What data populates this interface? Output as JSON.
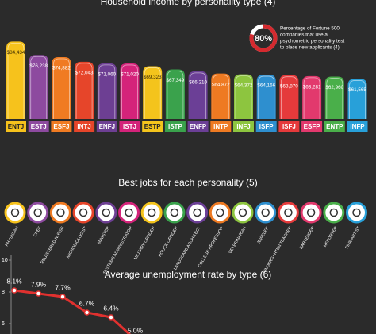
{
  "chart_data": [
    {
      "type": "bar",
      "title": "Household income by personality type (4)",
      "categories": [
        "ENTJ",
        "ESTJ",
        "ESFJ",
        "INTJ",
        "ENFJ",
        "ISTJ",
        "ESTP",
        "ISTP",
        "ENFP",
        "INTP",
        "INFJ",
        "ISFP",
        "ISFJ",
        "ESFP",
        "ENTP",
        "INFP"
      ],
      "values": [
        84434,
        76238,
        74882,
        72043,
        71060,
        71020,
        69323,
        67349,
        66210,
        64872,
        64372,
        64166,
        63870,
        63281,
        62960,
        61565
      ],
      "value_labels": [
        "$84,434",
        "$76,238",
        "$74,882",
        "$72,043",
        "$71,060",
        "$71,020",
        "$69,323",
        "$67,349",
        "$66,210",
        "$64,872",
        "$64,372",
        "$64,166",
        "$63,870",
        "$63,281",
        "$62,960",
        "$61,565"
      ],
      "colors": [
        "#f6c21c",
        "#8d4a9f",
        "#f07b22",
        "#e6452a",
        "#6d3f93",
        "#d4237a",
        "#f4c41c",
        "#3aa24c",
        "#6b3f96",
        "#ee7a22",
        "#8dc53f",
        "#2e8fcf",
        "#e53a3b",
        "#e2396d",
        "#4aaf4a",
        "#28a0d9"
      ],
      "ylim": [
        37000,
        88000
      ]
    },
    {
      "type": "line",
      "title": "Average unemployment rate by type (6)",
      "values": [
        8.1,
        7.9,
        7.7,
        6.7,
        6.4,
        5.0
      ],
      "value_labels": [
        "8.1%",
        "7.9%",
        "7.7%",
        "6.7%",
        "6.4%",
        "5.0%"
      ],
      "color": "#e0312f",
      "ylim": [
        5,
        10
      ],
      "yticks": [
        10,
        8,
        6
      ]
    }
  ],
  "callout": {
    "value": 80,
    "value_label": "80%",
    "lines": [
      "Percentage of Fortune 500",
      "companies that use a",
      "psychometric personality test",
      "to place new applicants (4)"
    ]
  },
  "jobs": {
    "title": "Best jobs for each personality (5)",
    "items": [
      "PHYSICIAN",
      "CHEF",
      "REGISTERED NURSE",
      "MICROBIOLOGIST",
      "MINISTER",
      "SYSTEMS ADMINISTRATOR",
      "MILITARY OFFICER",
      "POLICE OFFICER",
      "LANDSCAPE ARCHITECT",
      "COLLEGE PROFESSOR",
      "VETERINARIAN",
      "JEWELER",
      "KINDERGARTEN TEACHER",
      "BARTENDER",
      "REPORTER",
      "FINE ARTIST"
    ]
  }
}
